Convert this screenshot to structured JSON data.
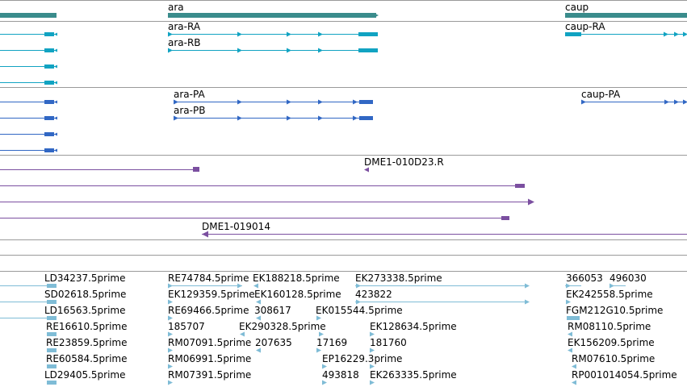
{
  "colors": {
    "gene": "#3a8c8c",
    "flybase_transcript": "#11a3c2",
    "refseq_transcript": "#3167c4",
    "clone_end": "#7b4fa0",
    "est": "#7fbcd6",
    "track_divider": "#9a9a9a",
    "row_divider": "#b0d4e2"
  },
  "genes": [
    {
      "name": "ara"
    },
    {
      "name": "caup"
    }
  ],
  "flybase_transcripts": [
    {
      "name": "ara-RA"
    },
    {
      "name": "ara-RB"
    },
    {
      "name": "caup-RA"
    }
  ],
  "refseq_transcripts": [
    {
      "name": "ara-PA"
    },
    {
      "name": "ara-PB"
    },
    {
      "name": "caup-PA"
    }
  ],
  "clone_ends": [
    {
      "name": "DME1-010D23.R"
    },
    {
      "name": "DME1-019014"
    }
  ],
  "est_labels": [
    "LD34237.5prime",
    "RE74784.5prime",
    "EK188218.5prime",
    "EK273338.5prime",
    "366053",
    "496030",
    "SD02618.5prime",
    "EK129359.5prime",
    "EK160128.5prime",
    "423822",
    "EK242558.5prime",
    "LD16563.5prime",
    "RE69466.5prime",
    "308617",
    "EK015544.5prime",
    "FGM212G10.5prime",
    "RE16610.5prime",
    "185707",
    "EK290328.5prime",
    "EK128634.5prime",
    "RM08110.5prime",
    "RE23859.5prime",
    "RM07091.5prime",
    "207635",
    "17169",
    "181760",
    "EK156209.5prime",
    "RE60584.5prime",
    "RM06991.5prime",
    "EP16229.3prime",
    "RM07610.5prime",
    "LD29405.5prime",
    "RM07391.5prime",
    "493818",
    "EK263335.5prime",
    "RP001014054.5prime"
  ]
}
